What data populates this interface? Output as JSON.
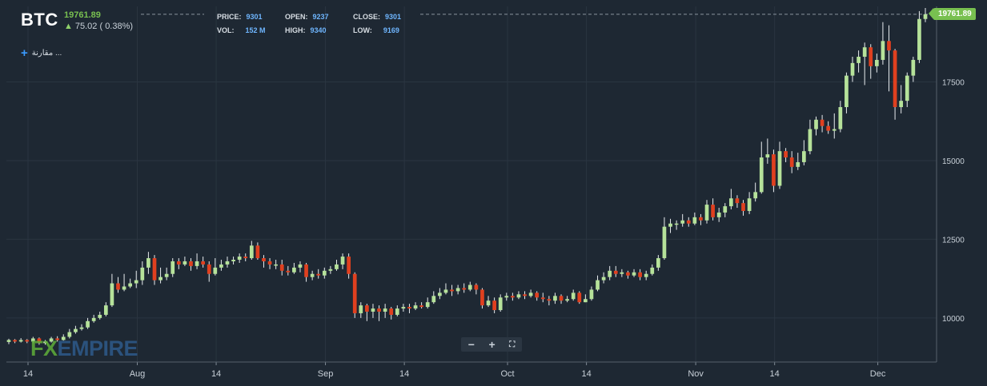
{
  "symbol": "BTC",
  "last_price": "19761.89",
  "change_text": "75.02 ( 0.38%)",
  "compare_label": "مقارنة ...",
  "stats": {
    "price_label": "PRICE:",
    "price_value": "9301",
    "open_label": "OPEN:",
    "open_value": "9237",
    "close_label": "CLOSE:",
    "close_value": "9301",
    "vol_label": "VOL:",
    "vol_value": "152 M",
    "high_label": "HIGH:",
    "high_value": "9340",
    "low_label": "LOW:",
    "low_value": "9169"
  },
  "price_tag": "19761.89",
  "logo": {
    "fx": "FX",
    "empire": "EMPIRE"
  },
  "zoom": {
    "minus": "−",
    "plus": "+",
    "fullscreen": "⛶"
  },
  "colors": {
    "background": "#1e2833",
    "up": "#b6e29a",
    "down": "#e0401f",
    "grid": "#2a3541",
    "axis_text": "#c8d0d8",
    "last_price": "#78c050",
    "stat_value": "#6fb6ff"
  },
  "chart_data": {
    "type": "candlestick",
    "y_ticks": [
      10000,
      12500,
      15000,
      17500
    ],
    "ylim": [
      8600,
      19900
    ],
    "x_ticks": [
      {
        "label": "14",
        "index": 0
      },
      {
        "label": "Aug",
        "index": 18
      },
      {
        "label": "14",
        "index": 31
      },
      {
        "label": "Sep",
        "index": 49
      },
      {
        "label": "14",
        "index": 62
      },
      {
        "label": "Oct",
        "index": 79
      },
      {
        "label": "14",
        "index": 92
      },
      {
        "label": "Nov",
        "index": 110
      },
      {
        "label": "14",
        "index": 123
      },
      {
        "label": "Dec",
        "index": 140
      }
    ],
    "candles": [
      [
        9237,
        9301,
        9340,
        9169
      ],
      [
        9301,
        9250,
        9330,
        9200
      ],
      [
        9250,
        9300,
        9360,
        9220
      ],
      [
        9300,
        9250,
        9330,
        9200
      ],
      [
        9250,
        9350,
        9400,
        9200
      ],
      [
        9350,
        9200,
        9380,
        9150
      ],
      [
        9200,
        9250,
        9300,
        9150
      ],
      [
        9250,
        9350,
        9400,
        9220
      ],
      [
        9350,
        9300,
        9420,
        9250
      ],
      [
        9300,
        9400,
        9480,
        9280
      ],
      [
        9400,
        9550,
        9650,
        9350
      ],
      [
        9550,
        9650,
        9750,
        9500
      ],
      [
        9650,
        9700,
        9800,
        9600
      ],
      [
        9700,
        9900,
        10000,
        9650
      ],
      [
        9900,
        10000,
        10100,
        9850
      ],
      [
        10000,
        10100,
        10200,
        9950
      ],
      [
        10100,
        10400,
        10500,
        10050
      ],
      [
        10400,
        11100,
        11400,
        10350
      ],
      [
        11100,
        10900,
        11300,
        10800
      ],
      [
        10900,
        11000,
        11400,
        10850
      ],
      [
        11000,
        11100,
        11250,
        10950
      ],
      [
        11100,
        11200,
        11500,
        10950
      ],
      [
        11200,
        11600,
        11800,
        11050
      ],
      [
        11600,
        11900,
        12100,
        11400
      ],
      [
        11900,
        11200,
        12000,
        11050
      ],
      [
        11200,
        11300,
        11600,
        11100
      ],
      [
        11300,
        11400,
        11600,
        11200
      ],
      [
        11400,
        11800,
        11900,
        11300
      ],
      [
        11800,
        11700,
        11900,
        11550
      ],
      [
        11700,
        11800,
        11950,
        11650
      ],
      [
        11800,
        11650,
        11900,
        11500
      ],
      [
        11650,
        11800,
        12050,
        11550
      ],
      [
        11800,
        11700,
        11950,
        11600
      ],
      [
        11700,
        11400,
        11800,
        11150
      ],
      [
        11400,
        11600,
        11900,
        11350
      ],
      [
        11600,
        11700,
        11850,
        11500
      ],
      [
        11700,
        11800,
        11950,
        11600
      ],
      [
        11800,
        11850,
        11950,
        11700
      ],
      [
        11850,
        11950,
        12050,
        11750
      ],
      [
        11950,
        11900,
        12050,
        11800
      ],
      [
        11900,
        12300,
        12450,
        11850
      ],
      [
        12300,
        11900,
        12400,
        11850
      ],
      [
        11900,
        11800,
        12000,
        11600
      ],
      [
        11800,
        11700,
        11900,
        11550
      ],
      [
        11700,
        11700,
        11850,
        11550
      ],
      [
        11700,
        11500,
        11850,
        11350
      ],
      [
        11500,
        11450,
        11650,
        11350
      ],
      [
        11450,
        11600,
        11750,
        11400
      ],
      [
        11600,
        11700,
        11800,
        11450
      ],
      [
        11700,
        11300,
        11750,
        11150
      ],
      [
        11300,
        11400,
        11500,
        11200
      ],
      [
        11400,
        11350,
        11550,
        11250
      ],
      [
        11350,
        11500,
        11600,
        11250
      ],
      [
        11500,
        11550,
        11650,
        11400
      ],
      [
        11550,
        11700,
        11850,
        11500
      ],
      [
        11700,
        11950,
        12050,
        11550
      ],
      [
        11950,
        11400,
        12050,
        11250
      ],
      [
        11400,
        10150,
        11450,
        10000
      ],
      [
        10150,
        10400,
        10500,
        10000
      ],
      [
        10400,
        10200,
        10450,
        9900
      ],
      [
        10200,
        10300,
        10450,
        10000
      ],
      [
        10300,
        10200,
        10400,
        9900
      ],
      [
        10200,
        10300,
        10450,
        10000
      ],
      [
        10300,
        10100,
        10350,
        9950
      ],
      [
        10100,
        10300,
        10400,
        10050
      ],
      [
        10300,
        10350,
        10450,
        10200
      ],
      [
        10350,
        10300,
        10450,
        10150
      ],
      [
        10300,
        10400,
        10500,
        10250
      ],
      [
        10400,
        10350,
        10500,
        10300
      ],
      [
        10350,
        10500,
        10650,
        10300
      ],
      [
        10500,
        10700,
        10850,
        10450
      ],
      [
        10700,
        10800,
        10950,
        10600
      ],
      [
        10800,
        10900,
        11100,
        10750
      ],
      [
        10900,
        10850,
        11050,
        10700
      ],
      [
        10850,
        10950,
        11050,
        10750
      ],
      [
        10950,
        10900,
        11100,
        10800
      ],
      [
        10900,
        11050,
        11150,
        10850
      ],
      [
        11050,
        10900,
        11100,
        10750
      ],
      [
        10900,
        10400,
        10950,
        10300
      ],
      [
        10400,
        10550,
        10700,
        10350
      ],
      [
        10550,
        10250,
        10650,
        10150
      ],
      [
        10250,
        10650,
        10750,
        10200
      ],
      [
        10650,
        10700,
        10800,
        10550
      ],
      [
        10700,
        10650,
        10800,
        10550
      ],
      [
        10650,
        10750,
        10850,
        10600
      ],
      [
        10750,
        10700,
        10850,
        10600
      ],
      [
        10700,
        10800,
        10900,
        10650
      ],
      [
        10800,
        10650,
        10850,
        10550
      ],
      [
        10650,
        10600,
        10800,
        10500
      ],
      [
        10600,
        10550,
        10700,
        10400
      ],
      [
        10550,
        10700,
        10800,
        10450
      ],
      [
        10700,
        10550,
        10750,
        10450
      ],
      [
        10550,
        10600,
        10700,
        10500
      ],
      [
        10600,
        10800,
        10900,
        10550
      ],
      [
        10800,
        10500,
        10850,
        10450
      ],
      [
        10500,
        10600,
        10750,
        10500
      ],
      [
        10600,
        10900,
        11000,
        10550
      ],
      [
        10900,
        11200,
        11350,
        10850
      ],
      [
        11200,
        11300,
        11450,
        11100
      ],
      [
        11300,
        11500,
        11650,
        11200
      ],
      [
        11500,
        11400,
        11650,
        11300
      ],
      [
        11400,
        11450,
        11550,
        11300
      ],
      [
        11450,
        11350,
        11500,
        11250
      ],
      [
        11350,
        11450,
        11550,
        11300
      ],
      [
        11450,
        11300,
        11550,
        11200
      ],
      [
        11300,
        11400,
        11500,
        11200
      ],
      [
        11400,
        11600,
        11700,
        11350
      ],
      [
        11600,
        11900,
        12000,
        11500
      ],
      [
        11900,
        12900,
        13200,
        11850
      ],
      [
        12900,
        13000,
        13150,
        12700
      ],
      [
        13000,
        13000,
        13100,
        12800
      ],
      [
        13000,
        13100,
        13300,
        12900
      ],
      [
        13100,
        13000,
        13200,
        12900
      ],
      [
        13000,
        13200,
        13350,
        12950
      ],
      [
        13200,
        13100,
        13300,
        12950
      ],
      [
        13100,
        13600,
        13750,
        13000
      ],
      [
        13600,
        13200,
        13800,
        13100
      ],
      [
        13200,
        13350,
        13500,
        13050
      ],
      [
        13350,
        13550,
        13650,
        13200
      ],
      [
        13550,
        13800,
        14100,
        13450
      ],
      [
        13800,
        13650,
        13900,
        13500
      ],
      [
        13650,
        13400,
        13750,
        13250
      ],
      [
        13400,
        13800,
        14000,
        13300
      ],
      [
        13800,
        14000,
        14300,
        13700
      ],
      [
        14000,
        15100,
        15600,
        13950
      ],
      [
        15100,
        15200,
        15700,
        14900
      ],
      [
        15200,
        14200,
        15350,
        14000
      ],
      [
        14200,
        15300,
        15600,
        14100
      ],
      [
        15300,
        15100,
        15400,
        14950
      ],
      [
        15100,
        14800,
        15300,
        14600
      ],
      [
        14800,
        14950,
        15250,
        14700
      ],
      [
        14950,
        15300,
        15650,
        14850
      ],
      [
        15300,
        16000,
        16300,
        15200
      ],
      [
        16000,
        16300,
        16400,
        15800
      ],
      [
        16300,
        16100,
        16450,
        15900
      ],
      [
        16100,
        15950,
        16250,
        15850
      ],
      [
        15950,
        16000,
        16500,
        15700
      ],
      [
        16000,
        16700,
        16900,
        15900
      ],
      [
        16700,
        17700,
        17800,
        16500
      ],
      [
        17700,
        18100,
        18300,
        17500
      ],
      [
        18100,
        18300,
        18500,
        17800
      ],
      [
        18300,
        18600,
        18750,
        17400
      ],
      [
        18600,
        18000,
        18700,
        17600
      ],
      [
        18000,
        18200,
        18400,
        17800
      ],
      [
        18200,
        18800,
        19400,
        18050
      ],
      [
        18800,
        18500,
        19300,
        17200
      ],
      [
        18500,
        16700,
        18550,
        16300
      ],
      [
        16700,
        16900,
        17400,
        16500
      ],
      [
        16900,
        17700,
        17800,
        16700
      ],
      [
        17700,
        18200,
        18300,
        17500
      ],
      [
        18200,
        19500,
        19750,
        18100
      ],
      [
        19500,
        19650,
        19850,
        19400
      ]
    ]
  }
}
